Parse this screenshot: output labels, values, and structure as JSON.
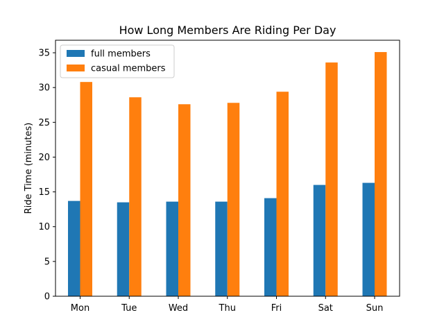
{
  "chart_data": {
    "type": "bar",
    "title": "How Long Members Are Riding Per Day",
    "xlabel": "",
    "ylabel": "Ride Time (minutes)",
    "categories": [
      "Mon",
      "Tue",
      "Wed",
      "Thu",
      "Fri",
      "Sat",
      "Sun"
    ],
    "series": [
      {
        "name": "full members",
        "color": "#1f77b4",
        "values": [
          13.7,
          13.5,
          13.6,
          13.6,
          14.1,
          16.0,
          16.3
        ]
      },
      {
        "name": "casual members",
        "color": "#ff7f0e",
        "values": [
          30.8,
          28.6,
          27.6,
          27.8,
          29.4,
          33.6,
          35.1
        ]
      }
    ],
    "ylim": [
      0,
      36.8
    ],
    "yticks": [
      0,
      5,
      10,
      15,
      20,
      25,
      30,
      35
    ],
    "grid": false,
    "legend_position": "top-left"
  }
}
